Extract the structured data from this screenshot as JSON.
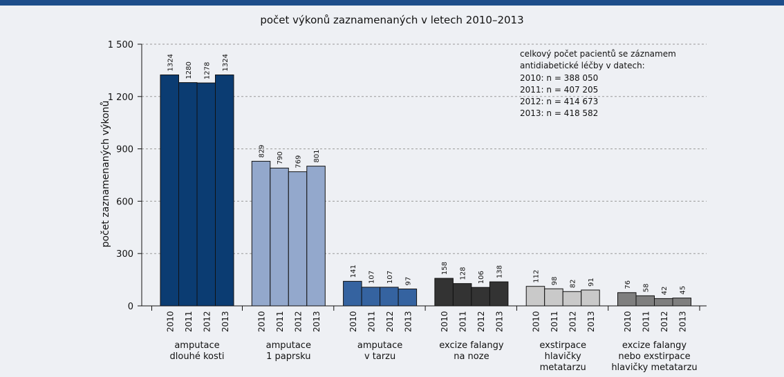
{
  "chart_data": {
    "type": "grouped-bar",
    "title": "počet výkonů zaznamenaných v letech 2010–2013",
    "y_label": "počet zaznamenaných výkonů",
    "categories": [
      "2010",
      "2011",
      "2012",
      "2013"
    ],
    "series": [
      {
        "name": "amputace\ndlouhé kosti",
        "color": "#0b3c72",
        "values": [
          1324,
          1280,
          1278,
          1324
        ]
      },
      {
        "name": "amputace\n1 paprsku",
        "color": "#93a8cc",
        "values": [
          829,
          790,
          769,
          801
        ]
      },
      {
        "name": "amputace\nv tarzu",
        "color": "#3563a0",
        "values": [
          141,
          107,
          107,
          97
        ]
      },
      {
        "name": "excize falangy\nna noze",
        "color": "#333333",
        "values": [
          158,
          128,
          106,
          138
        ]
      },
      {
        "name": "exstirpace\nhlavičky\nmetatarzu",
        "color": "#c9c9c9",
        "values": [
          112,
          98,
          82,
          91
        ]
      },
      {
        "name": "excize falangy\nnebo exstirpace\nhlavičky metatarzu",
        "color": "#7f7f7f",
        "values": [
          76,
          58,
          42,
          45
        ]
      }
    ],
    "ylim": [
      0,
      1500
    ],
    "yticks": [
      0,
      300,
      600,
      900,
      {
        "value": 1200,
        "label": "1 200"
      },
      {
        "value": 1500,
        "label": "1 500"
      }
    ],
    "grid": true,
    "annotations": [
      "celkový počet pacientů se záznamem",
      "antidiabetické léčby v datech:",
      "2010: n = 388 050",
      "2011: n = 407 205",
      "2012: n = 414 673",
      "2013: n = 418 582"
    ]
  }
}
